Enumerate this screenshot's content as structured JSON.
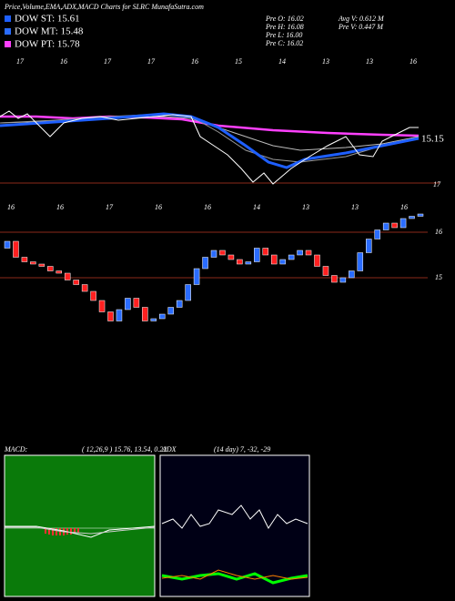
{
  "header": {
    "title": "Price,Volume,EMA,ADX,MACD Charts for SLRC MunafaSutra.com"
  },
  "legend": [
    "DOW ST: 15.61",
    "DOW MT: 15.48",
    "DOW PT: 15.78"
  ],
  "quote": {
    "open": "Pre  O: 16.02",
    "high": "Pre  H: 16.08",
    "low": "Pre  L: 16.00",
    "close": "Pre  C: 16.02",
    "avg_volume": "Avg V: 0.612  M",
    "pre_volume": "Pre  V: 0.447  M"
  },
  "top_panel": {
    "dates": [
      "17",
      "16",
      "17",
      "17",
      "16",
      "15",
      "14",
      "13",
      "13",
      "16"
    ],
    "last_label": "15.15",
    "scale_label": "17"
  },
  "candle_panel": {
    "dates": [
      "16",
      "16",
      "17",
      "16",
      "16",
      "14",
      "13",
      "13",
      "16"
    ],
    "yticks": [
      16,
      15
    ]
  },
  "candles": {
    "open": [
      15.65,
      15.8,
      15.45,
      15.35,
      15.3,
      15.25,
      15.15,
      15.1,
      14.95,
      14.85,
      14.7,
      14.5,
      14.25,
      14.05,
      14.3,
      14.55,
      14.35,
      14.05,
      14.1,
      14.2,
      14.35,
      14.5,
      14.85,
      15.2,
      15.45,
      15.6,
      15.5,
      15.4,
      15.3,
      15.35,
      15.65,
      15.5,
      15.3,
      15.4,
      15.5,
      15.6,
      15.5,
      15.25,
      15.05,
      14.9,
      15.0,
      15.15,
      15.55,
      15.85,
      16.05,
      16.2,
      16.1,
      16.3,
      16.35
    ],
    "close": [
      15.8,
      15.45,
      15.35,
      15.3,
      15.25,
      15.15,
      15.1,
      14.95,
      14.85,
      14.7,
      14.5,
      14.25,
      14.05,
      14.3,
      14.55,
      14.35,
      14.05,
      14.1,
      14.2,
      14.35,
      14.5,
      14.85,
      15.2,
      15.45,
      15.6,
      15.5,
      15.4,
      15.3,
      15.35,
      15.65,
      15.5,
      15.3,
      15.4,
      15.5,
      15.6,
      15.5,
      15.25,
      15.05,
      14.9,
      15.0,
      15.15,
      15.55,
      15.85,
      16.05,
      16.2,
      16.1,
      16.3,
      16.35,
      16.4
    ]
  },
  "macd": {
    "label": "MACD:",
    "values": "( 12,26,9 ) 15.76,  13.54,  0.22"
  },
  "adx": {
    "label": "ADX",
    "values": "(14  day) 7,  -32,  -29"
  }
}
